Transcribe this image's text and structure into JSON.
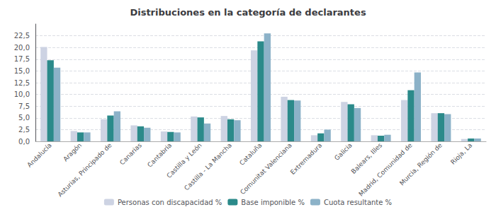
{
  "chart_data": {
    "type": "bar",
    "title": "Distribuciones en la categoría de declarantes",
    "categories": [
      "Andalucía",
      "Aragón",
      "Asturias, Principado de",
      "Canarias",
      "Cantabria",
      "Castilla y León",
      "Castilla - La Mancha",
      "Cataluña",
      "Comunitat Valenciana",
      "Extremadura",
      "Galicia",
      "Balears, Illes",
      "Madrid, Comunidad de",
      "Murcia, Región de",
      "Rioja, La"
    ],
    "series": [
      {
        "name": "Personas con discapacidad %",
        "color": "#cdd3e3",
        "values": [
          20.1,
          2.2,
          4.7,
          3.4,
          2.1,
          5.3,
          5.4,
          19.4,
          9.5,
          1.3,
          8.4,
          1.3,
          8.8,
          6.0,
          0.5
        ]
      },
      {
        "name": "Base imponible %",
        "color": "#2b8a8a",
        "values": [
          17.3,
          1.9,
          5.5,
          3.2,
          2.0,
          5.1,
          4.7,
          21.3,
          8.8,
          1.7,
          7.9,
          1.2,
          10.9,
          6.0,
          0.6
        ]
      },
      {
        "name": "Cuota resultante %",
        "color": "#8cb2c8",
        "values": [
          15.7,
          1.9,
          6.4,
          2.9,
          1.9,
          3.8,
          4.5,
          23.0,
          8.7,
          2.5,
          7.1,
          1.4,
          14.7,
          5.8,
          0.6
        ]
      }
    ],
    "ylim": [
      0,
      25
    ],
    "yticks": [
      {
        "value": 0.0,
        "label": "0,0"
      },
      {
        "value": 2.5,
        "label": "2,5"
      },
      {
        "value": 5.0,
        "label": "5,0"
      },
      {
        "value": 7.5,
        "label": "7,5"
      },
      {
        "value": 10.0,
        "label": "10,0"
      },
      {
        "value": 12.5,
        "label": "12,5"
      },
      {
        "value": 15.0,
        "label": "15,0"
      },
      {
        "value": 17.5,
        "label": "17,5"
      },
      {
        "value": 20.0,
        "label": "20,0"
      },
      {
        "value": 22.5,
        "label": "22,5"
      }
    ],
    "grid": true,
    "legend": "bottom"
  }
}
